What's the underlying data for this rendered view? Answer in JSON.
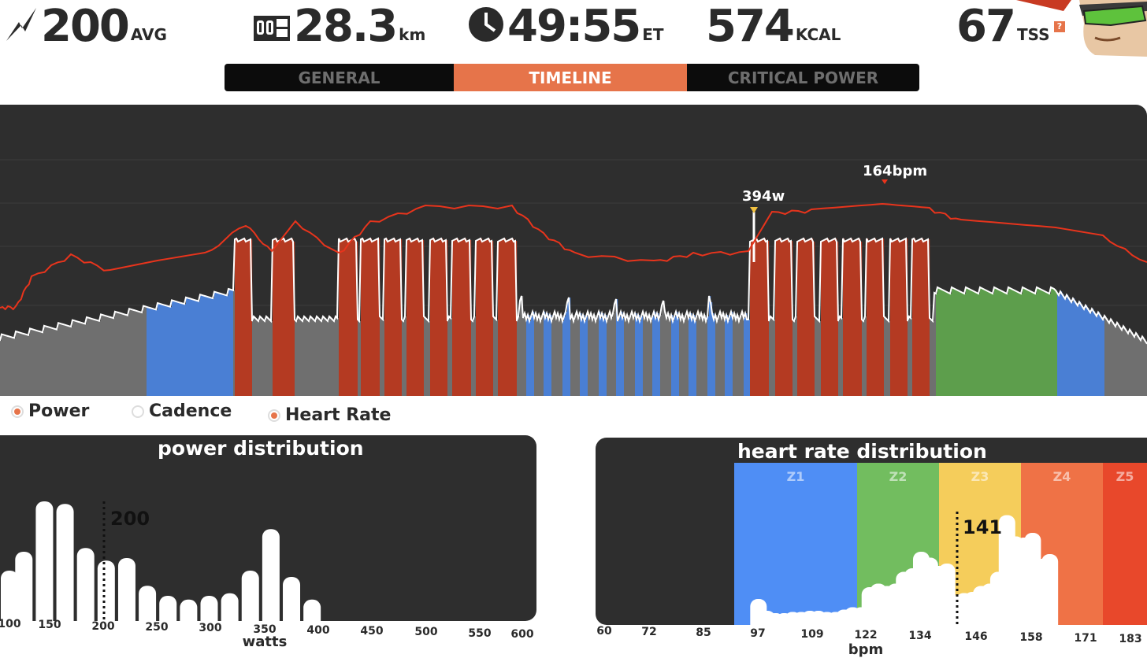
{
  "stats": {
    "power": {
      "value": "200",
      "unit": "AVG",
      "icon": "lightning-icon"
    },
    "distance": {
      "value": "28.3",
      "unit": "km",
      "icon": "odometer-icon"
    },
    "time": {
      "value": "49:55",
      "unit": "ET",
      "icon": "clock-icon"
    },
    "calories": {
      "value": "574",
      "unit": "KCAL"
    },
    "tss": {
      "value": "67",
      "unit": "TSS",
      "badge": "?"
    }
  },
  "tabs": [
    {
      "label": "GENERAL",
      "active": false
    },
    {
      "label": "TIMELINE",
      "active": true
    },
    {
      "label": "CRITICAL POWER",
      "active": false
    }
  ],
  "timeline": {
    "max_power_label": "394w",
    "max_hr_label": "164bpm",
    "colors": {
      "hr_line": "#e8341c",
      "power_line": "#ffffff",
      "z1": "#4a7fd4",
      "z2": "#5d9e4c",
      "z5": "#b43a22",
      "base": "#6f6f6f"
    }
  },
  "legend": [
    {
      "label": "Power",
      "on": true
    },
    {
      "label": "Cadence",
      "on": false
    },
    {
      "label": "Heart Rate",
      "on": true
    }
  ],
  "chart_data": [
    {
      "type": "bar",
      "title": "power distribution",
      "xlabel": "watts",
      "ticks": [
        "100",
        "150",
        "200",
        "250",
        "300",
        "350",
        "400",
        "450",
        "500",
        "550",
        "600"
      ],
      "average_label": "200",
      "x": [
        100,
        114,
        134,
        154,
        174,
        194,
        214,
        234,
        254,
        274,
        294,
        314,
        334,
        354,
        374,
        394
      ],
      "values": [
        40,
        55,
        95,
        93,
        58,
        48,
        50,
        28,
        20,
        17,
        20,
        22,
        40,
        73,
        35,
        17
      ]
    },
    {
      "type": "bar",
      "title": "heart rate distribution",
      "xlabel": "bpm",
      "ticks": [
        "60",
        "72",
        "85",
        "97",
        "109",
        "122",
        "134",
        "146",
        "158",
        "171",
        "183"
      ],
      "zones": [
        {
          "name": "Z1",
          "color": "#4f8ef5"
        },
        {
          "name": "Z2",
          "color": "#72bd5f"
        },
        {
          "name": "Z3",
          "color": "#f5cd5b"
        },
        {
          "name": "Z4",
          "color": "#ef7246"
        },
        {
          "name": "Z5",
          "color": "#e8482b"
        }
      ],
      "average_label": "141",
      "x": [
        96,
        98,
        100,
        102,
        104,
        106,
        108,
        110,
        112,
        114,
        116,
        118,
        120,
        122,
        124,
        126,
        128,
        130,
        132,
        134,
        136,
        138,
        140,
        142,
        144,
        146,
        148,
        150,
        152,
        154,
        156,
        158,
        160,
        162,
        164,
        166
      ],
      "values": [
        22,
        12,
        10,
        10,
        11,
        11,
        12,
        12,
        11,
        11,
        13,
        15,
        15,
        32,
        35,
        33,
        35,
        45,
        48,
        62,
        57,
        50,
        52,
        25,
        27,
        28,
        33,
        35,
        45,
        93,
        75,
        74,
        78,
        56,
        60,
        0
      ]
    }
  ]
}
